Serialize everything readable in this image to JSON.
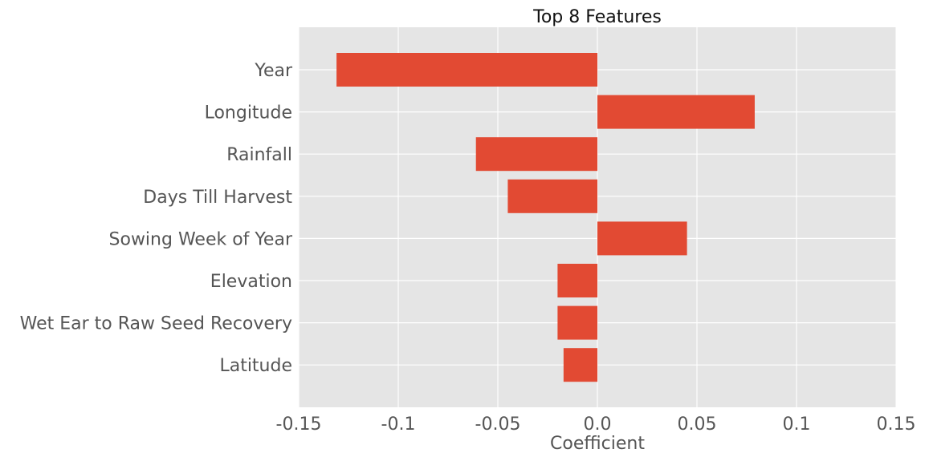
{
  "colors": {
    "plot_background": "#E5E5E5",
    "grid": "#FFFFFF",
    "bar": "#E24A33",
    "tick_text": "#555555",
    "title_text": "#111111"
  },
  "chart_data": {
    "type": "bar",
    "orientation": "horizontal",
    "title": "Top 8 Features",
    "xlabel": "Coefficient",
    "ylabel": "",
    "categories": [
      "Year",
      "Longitude",
      "Rainfall",
      "Days Till Harvest",
      "Sowing Week of Year",
      "Elevation",
      "Wet Ear to Raw Seed Recovery",
      "Latitude"
    ],
    "values": [
      -0.131,
      0.079,
      -0.061,
      -0.045,
      0.045,
      -0.02,
      -0.02,
      -0.017
    ],
    "xlim": [
      -0.15,
      0.15
    ],
    "xticks": [
      -0.15,
      -0.1,
      -0.05,
      0.0,
      0.05,
      0.1,
      0.15
    ],
    "xtick_labels": [
      "-0.15",
      "-0.1",
      "-0.05",
      "0.0",
      "0.05",
      "0.1",
      "0.15"
    ],
    "grid": true,
    "legend": "none"
  }
}
